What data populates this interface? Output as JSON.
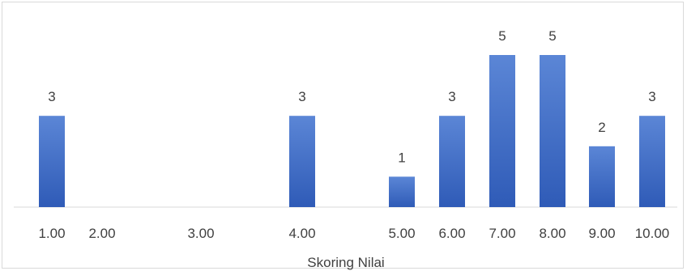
{
  "chart_data": {
    "type": "bar",
    "title": "",
    "xlabel": "Skoring Nilai",
    "ylabel": "",
    "categories": [
      "1.00",
      "2.00",
      "3.00",
      "4.00",
      "5.00",
      "6.00",
      "7.00",
      "8.00",
      "9.00",
      "10.00"
    ],
    "x": [
      1.0,
      2.0,
      3.0,
      4.0,
      5.0,
      6.0,
      7.0,
      8.0,
      9.0,
      10.0
    ],
    "values": [
      3,
      0,
      0,
      3,
      1,
      3,
      5,
      5,
      2,
      3
    ],
    "data_labels": [
      "3",
      "",
      "",
      "3",
      "1",
      "3",
      "5",
      "5",
      "2",
      "3"
    ],
    "ylim": [
      0,
      5.6
    ],
    "bar_color": "#4472c4",
    "grid": false,
    "legend": "none"
  }
}
